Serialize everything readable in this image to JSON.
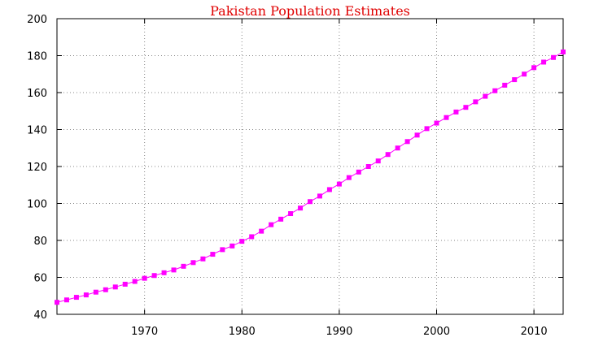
{
  "chart_data": {
    "type": "line",
    "title": "Pakistan Population Estimates",
    "xlabel": "",
    "ylabel": "",
    "xlim": [
      1961,
      2013
    ],
    "ylim": [
      40,
      200
    ],
    "x_ticks": [
      1970,
      1980,
      1990,
      2000,
      2010
    ],
    "y_ticks": [
      40,
      60,
      80,
      100,
      120,
      140,
      160,
      180,
      200
    ],
    "grid": true,
    "legend": "none",
    "colors": {
      "title": "#e00000",
      "series": "#ff00ff",
      "grid": "#888888",
      "axis": "#000000"
    },
    "series": [
      {
        "name": "",
        "x": [
          1961,
          1962,
          1963,
          1964,
          1965,
          1966,
          1967,
          1968,
          1969,
          1970,
          1971,
          1972,
          1973,
          1974,
          1975,
          1976,
          1977,
          1978,
          1979,
          1980,
          1981,
          1982,
          1983,
          1984,
          1985,
          1986,
          1987,
          1988,
          1989,
          1990,
          1991,
          1992,
          1993,
          1994,
          1995,
          1996,
          1997,
          1998,
          1999,
          2000,
          2001,
          2002,
          2003,
          2004,
          2005,
          2006,
          2007,
          2008,
          2009,
          2010,
          2011,
          2012,
          2013
        ],
        "y": [
          46.5,
          47.8,
          49.2,
          50.5,
          52.0,
          53.3,
          54.8,
          56.3,
          57.8,
          59.5,
          61.0,
          62.5,
          64.0,
          66.0,
          68.0,
          70.0,
          72.5,
          75.0,
          77.0,
          79.5,
          82.0,
          85.0,
          88.5,
          91.5,
          94.5,
          97.5,
          101.0,
          104.0,
          107.5,
          110.5,
          114.0,
          117.0,
          120.0,
          123.0,
          126.5,
          130.0,
          133.5,
          137.0,
          140.5,
          143.5,
          146.5,
          149.5,
          152.0,
          155.0,
          158.0,
          161.0,
          164.0,
          167.0,
          170.0,
          173.5,
          176.5,
          179.0,
          182.0
        ]
      }
    ]
  }
}
